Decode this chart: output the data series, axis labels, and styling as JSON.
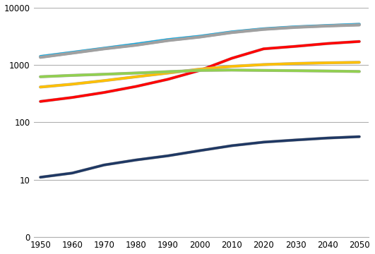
{
  "x": [
    1950,
    1960,
    1970,
    1980,
    1990,
    2000,
    2010,
    2020,
    2030,
    2040,
    2050
  ],
  "series_order": [
    "cyan",
    "gray",
    "red",
    "yellow",
    "green",
    "navy"
  ],
  "series": {
    "cyan": [
      1400,
      1650,
      1950,
      2300,
      2750,
      3150,
      3750,
      4250,
      4600,
      4850,
      5100
    ],
    "gray": [
      1350,
      1600,
      1900,
      2200,
      2650,
      3050,
      3650,
      4150,
      4500,
      4750,
      4950
    ],
    "red": [
      230,
      270,
      330,
      420,
      560,
      800,
      1300,
      1900,
      2100,
      2350,
      2550
    ],
    "yellow": [
      410,
      460,
      530,
      620,
      720,
      840,
      940,
      1010,
      1055,
      1085,
      1105
    ],
    "green": [
      620,
      655,
      685,
      720,
      760,
      800,
      810,
      800,
      790,
      780,
      765
    ],
    "navy": [
      11,
      13,
      18,
      22,
      26,
      32,
      39,
      45,
      49,
      53,
      56
    ]
  },
  "colors": {
    "cyan": "#00B0F0",
    "gray": "#A0A0A0",
    "red": "#FF0000",
    "yellow": "#FFC000",
    "green": "#92D050",
    "navy": "#1F3864"
  },
  "shadow_color": "#AAAAAA",
  "linewidth": 2.5,
  "ylim_min": 1,
  "ylim_max": 10000,
  "xlim_min": 1948,
  "xlim_max": 2053,
  "xticks": [
    1950,
    1960,
    1970,
    1980,
    1990,
    2000,
    2010,
    2020,
    2030,
    2040,
    2050
  ],
  "yticks_log": [
    1,
    10,
    100,
    1000,
    10000
  ],
  "ytick_labels": [
    "0",
    "10",
    "100",
    "1000",
    "10000"
  ],
  "background_color": "#FFFFFF",
  "grid_color": "#B0B0B0",
  "figsize": [
    5.31,
    3.6
  ],
  "dpi": 100
}
